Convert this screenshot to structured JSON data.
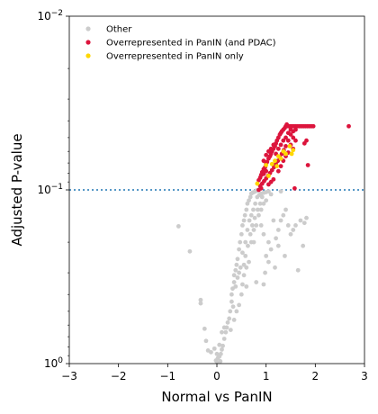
{
  "chart_data": {
    "type": "scatter",
    "xlabel": "Normal vs PanIN",
    "ylabel": "Adjusted P-value",
    "xlim": [
      -3,
      3
    ],
    "ylim": [
      1,
      0.01
    ],
    "y_scale": "log",
    "y_inverted": true,
    "x_ticks": [
      "−3",
      "−2",
      "−1",
      "0",
      "1",
      "2",
      "3"
    ],
    "x_tick_values": [
      -3,
      -2,
      -1,
      0,
      1,
      2,
      3
    ],
    "y_ticks": [
      {
        "value": 1,
        "base": "10",
        "exp": "0"
      },
      {
        "value": 0.1,
        "base": "10",
        "exp": "−1"
      },
      {
        "value": 0.01,
        "base": "10",
        "exp": "−2"
      }
    ],
    "threshold": {
      "value": 0.1,
      "color": "#1f77b4",
      "style": "dotted"
    },
    "legend_position": "top-left",
    "series": [
      {
        "name": "Other",
        "color": "#cccccc",
        "points": [
          [
            -0.78,
            0.162
          ],
          [
            -0.55,
            0.226
          ],
          [
            -0.33,
            0.43
          ],
          [
            -0.33,
            0.45
          ],
          [
            -0.25,
            0.63
          ],
          [
            -0.22,
            0.74
          ],
          [
            -0.18,
            0.84
          ],
          [
            -0.12,
            0.86
          ],
          [
            -0.05,
            0.82
          ],
          [
            -0.02,
            0.96
          ],
          [
            0.0,
            0.98
          ],
          [
            0.02,
            0.93
          ],
          [
            0.05,
            0.91
          ],
          [
            0.08,
            0.88
          ],
          [
            0.1,
            0.83
          ],
          [
            0.12,
            0.79
          ],
          [
            0.15,
            0.72
          ],
          [
            0.18,
            0.66
          ],
          [
            0.2,
            0.62
          ],
          [
            0.22,
            0.58
          ],
          [
            0.25,
            0.55
          ],
          [
            0.27,
            0.5
          ],
          [
            0.3,
            0.44
          ],
          [
            0.3,
            0.4
          ],
          [
            0.32,
            0.37
          ],
          [
            0.35,
            0.34
          ],
          [
            0.35,
            0.31
          ],
          [
            0.38,
            0.29
          ],
          [
            0.4,
            0.27
          ],
          [
            0.42,
            0.25
          ],
          [
            0.45,
            0.22
          ],
          [
            0.47,
            0.2
          ],
          [
            0.5,
            0.18
          ],
          [
            0.52,
            0.16
          ],
          [
            0.55,
            0.15
          ],
          [
            0.57,
            0.14
          ],
          [
            0.6,
            0.13
          ],
          [
            0.62,
            0.12
          ],
          [
            0.65,
            0.115
          ],
          [
            0.68,
            0.11
          ],
          [
            0.7,
            0.105
          ],
          [
            0.72,
            0.104
          ],
          [
            0.75,
            0.103
          ],
          [
            0.78,
            0.102
          ],
          [
            0.8,
            0.101
          ],
          [
            0.82,
            0.101
          ],
          [
            0.28,
            0.64
          ],
          [
            0.33,
            0.47
          ],
          [
            0.38,
            0.36
          ],
          [
            0.42,
            0.32
          ],
          [
            0.48,
            0.28
          ],
          [
            0.52,
            0.23
          ],
          [
            0.58,
            0.2
          ],
          [
            0.62,
            0.17
          ],
          [
            0.66,
            0.15
          ],
          [
            0.7,
            0.14
          ],
          [
            0.74,
            0.13
          ],
          [
            0.78,
            0.12
          ],
          [
            0.82,
            0.11
          ],
          [
            0.86,
            0.107
          ],
          [
            0.9,
            0.105
          ],
          [
            0.95,
            0.104
          ],
          [
            1.0,
            0.103
          ],
          [
            1.05,
            0.102
          ],
          [
            0.5,
            0.4
          ],
          [
            0.6,
            0.36
          ],
          [
            0.65,
            0.26
          ],
          [
            0.7,
            0.2
          ],
          [
            0.75,
            0.17
          ],
          [
            0.8,
            0.16
          ],
          [
            0.85,
            0.14
          ],
          [
            0.9,
            0.13
          ],
          [
            0.95,
            0.12
          ],
          [
            1.0,
            0.115
          ],
          [
            0.95,
            0.35
          ],
          [
            0.98,
            0.3
          ],
          [
            1.05,
            0.26
          ],
          [
            1.1,
            0.22
          ],
          [
            1.18,
            0.28
          ],
          [
            1.2,
            0.19
          ],
          [
            1.25,
            0.17
          ],
          [
            1.3,
            0.15
          ],
          [
            1.35,
            0.14
          ],
          [
            1.4,
            0.13
          ],
          [
            1.45,
            0.16
          ],
          [
            1.5,
            0.18
          ],
          [
            1.55,
            0.17
          ],
          [
            1.6,
            0.16
          ],
          [
            1.65,
            0.29
          ],
          [
            1.7,
            0.15
          ],
          [
            1.75,
            0.21
          ],
          [
            1.78,
            0.155
          ],
          [
            1.82,
            0.145
          ],
          [
            0.45,
            0.46
          ],
          [
            0.4,
            0.5
          ],
          [
            0.55,
            0.31
          ],
          [
            0.6,
            0.28
          ],
          [
            0.58,
            0.24
          ],
          [
            0.63,
            0.21
          ],
          [
            0.68,
            0.18
          ],
          [
            0.72,
            0.16
          ],
          [
            0.77,
            0.145
          ],
          [
            0.83,
            0.13
          ],
          [
            0.88,
            0.12
          ],
          [
            0.92,
            0.11
          ],
          [
            1.1,
            0.106
          ],
          [
            1.3,
            0.102
          ],
          [
            0.35,
            0.56
          ],
          [
            0.15,
            0.62
          ],
          [
            0.1,
            0.66
          ],
          [
            0.05,
            0.78
          ],
          [
            0.0,
            0.88
          ],
          [
            0.07,
            0.97
          ],
          [
            0.75,
            0.2
          ],
          [
            0.8,
            0.34
          ],
          [
            0.9,
            0.16
          ],
          [
            0.95,
            0.18
          ],
          [
            1.0,
            0.24
          ],
          [
            1.05,
            0.2
          ],
          [
            1.15,
            0.15
          ],
          [
            1.25,
            0.21
          ],
          [
            1.38,
            0.24
          ],
          [
            0.45,
            0.3
          ],
          [
            0.52,
            0.35
          ],
          [
            0.55,
            0.27
          ]
        ]
      },
      {
        "name": "Overrepresented in PanIN (and PDAC)",
        "color": "#dc143c",
        "points": [
          [
            0.85,
            0.088
          ],
          [
            0.88,
            0.085
          ],
          [
            0.9,
            0.082
          ],
          [
            0.92,
            0.079
          ],
          [
            0.95,
            0.076
          ],
          [
            0.98,
            0.074
          ],
          [
            1.0,
            0.071
          ],
          [
            1.02,
            0.069
          ],
          [
            1.05,
            0.066
          ],
          [
            1.08,
            0.064
          ],
          [
            1.1,
            0.062
          ],
          [
            1.12,
            0.06
          ],
          [
            1.15,
            0.058
          ],
          [
            1.18,
            0.056
          ],
          [
            1.2,
            0.054
          ],
          [
            1.22,
            0.052
          ],
          [
            1.25,
            0.05
          ],
          [
            1.28,
            0.048
          ],
          [
            1.3,
            0.047
          ],
          [
            1.32,
            0.046
          ],
          [
            1.35,
            0.045
          ],
          [
            1.38,
            0.044
          ],
          [
            1.4,
            0.043
          ],
          [
            1.42,
            0.042
          ],
          [
            0.88,
            0.095
          ],
          [
            0.92,
            0.092
          ],
          [
            0.96,
            0.089
          ],
          [
            1.0,
            0.086
          ],
          [
            1.04,
            0.083
          ],
          [
            1.08,
            0.08
          ],
          [
            1.12,
            0.077
          ],
          [
            1.16,
            0.074
          ],
          [
            1.2,
            0.071
          ],
          [
            1.24,
            0.068
          ],
          [
            1.28,
            0.065
          ],
          [
            1.32,
            0.062
          ],
          [
            1.36,
            0.059
          ],
          [
            1.4,
            0.056
          ],
          [
            1.45,
            0.052
          ],
          [
            1.5,
            0.048
          ],
          [
            1.55,
            0.046
          ],
          [
            1.6,
            0.045
          ],
          [
            0.95,
            0.068
          ],
          [
            1.0,
            0.063
          ],
          [
            1.05,
            0.06
          ],
          [
            1.1,
            0.058
          ],
          [
            1.15,
            0.055
          ],
          [
            1.2,
            0.062
          ],
          [
            1.25,
            0.058
          ],
          [
            1.3,
            0.055
          ],
          [
            1.35,
            0.052
          ],
          [
            1.4,
            0.05
          ],
          [
            1.45,
            0.047
          ],
          [
            1.5,
            0.045
          ],
          [
            1.45,
            0.043
          ],
          [
            1.48,
            0.043
          ],
          [
            1.52,
            0.043
          ],
          [
            1.56,
            0.043
          ],
          [
            1.6,
            0.043
          ],
          [
            1.64,
            0.043
          ],
          [
            1.68,
            0.043
          ],
          [
            1.72,
            0.043
          ],
          [
            1.76,
            0.043
          ],
          [
            1.8,
            0.043
          ],
          [
            1.84,
            0.043
          ],
          [
            1.88,
            0.043
          ],
          [
            1.92,
            0.043
          ],
          [
            1.96,
            0.043
          ],
          [
            2.68,
            0.043
          ],
          [
            1.55,
            0.05
          ],
          [
            1.6,
            0.052
          ],
          [
            1.5,
            0.055
          ],
          [
            1.55,
            0.058
          ],
          [
            1.82,
            0.052
          ],
          [
            1.78,
            0.054
          ],
          [
            1.85,
            0.072
          ],
          [
            1.58,
            0.098
          ],
          [
            0.85,
            0.1
          ],
          [
            0.9,
            0.098
          ],
          [
            1.05,
            0.093
          ],
          [
            1.1,
            0.09
          ],
          [
            1.15,
            0.087
          ],
          [
            1.25,
            0.078
          ],
          [
            1.3,
            0.073
          ],
          [
            1.35,
            0.068
          ],
          [
            1.4,
            0.064
          ],
          [
            1.45,
            0.061
          ],
          [
            1.0,
            0.078
          ],
          [
            0.95,
            0.081
          ]
        ]
      },
      {
        "name": "Overrepresented in PanIN only",
        "color": "#ffd700",
        "points": [
          [
            0.82,
            0.092
          ],
          [
            1.05,
            0.083
          ],
          [
            1.18,
            0.068
          ],
          [
            1.22,
            0.073
          ],
          [
            1.3,
            0.066
          ],
          [
            1.4,
            0.062
          ],
          [
            1.48,
            0.056
          ],
          [
            1.52,
            0.062
          ],
          [
            1.55,
            0.059
          ],
          [
            1.12,
            0.071
          ],
          [
            1.0,
            0.072
          ],
          [
            1.35,
            0.06
          ],
          [
            1.25,
            0.064
          ]
        ]
      }
    ]
  }
}
